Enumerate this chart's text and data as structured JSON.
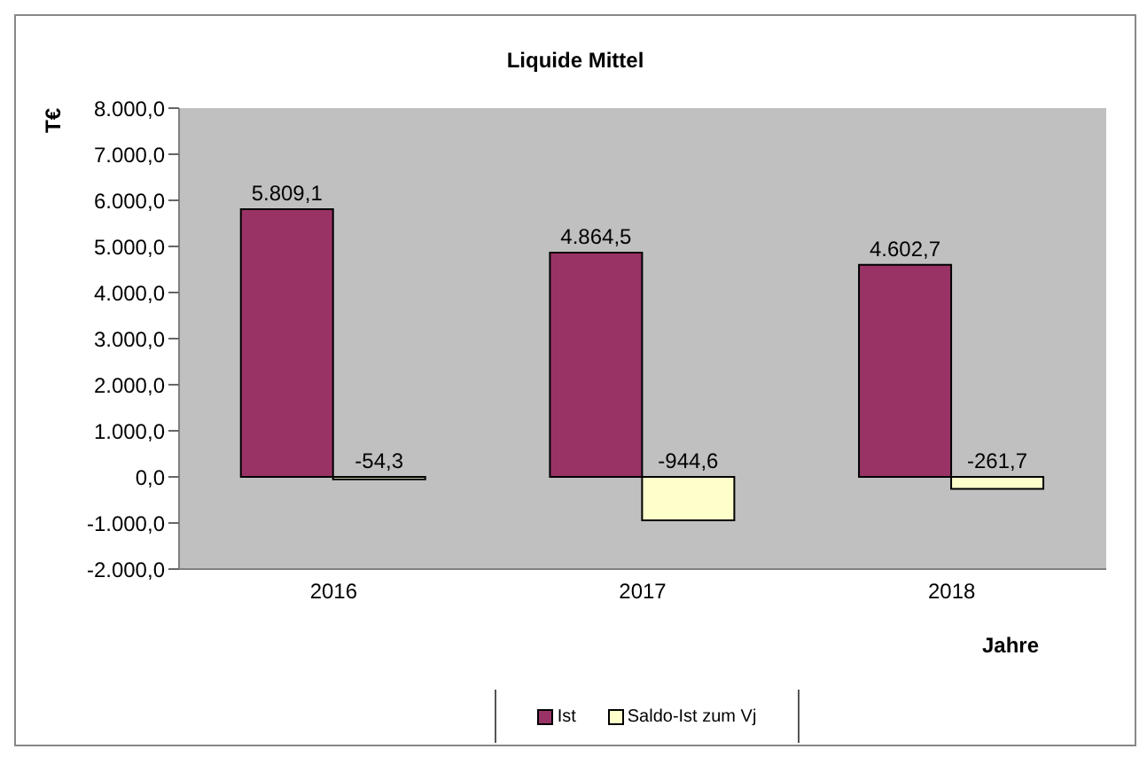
{
  "chart_data": {
    "type": "bar",
    "title": "Liquide  Mittel",
    "xlabel": "Jahre",
    "ylabel": "T€",
    "categories": [
      "2016",
      "2017",
      "2018"
    ],
    "series": [
      {
        "name": "Ist",
        "color": "#993366",
        "values": [
          5809.1,
          4864.5,
          4602.7
        ],
        "value_labels": [
          "5.809,1",
          "4.864,5",
          "4.602,7"
        ]
      },
      {
        "name": "Saldo-Ist zum Vj",
        "color": "#ffffcc",
        "values": [
          -54.3,
          -944.6,
          -261.7
        ],
        "value_labels": [
          "-54,3",
          "-944,6",
          "-261,7"
        ]
      }
    ],
    "ylim": [
      -2000,
      8000
    ],
    "yticks": [
      {
        "value": -2000,
        "label": "-2.000,0"
      },
      {
        "value": -1000,
        "label": "-1.000,0"
      },
      {
        "value": 0,
        "label": "0,0"
      },
      {
        "value": 1000,
        "label": "1.000,0"
      },
      {
        "value": 2000,
        "label": "2.000,0"
      },
      {
        "value": 3000,
        "label": "3.000,0"
      },
      {
        "value": 4000,
        "label": "4.000,0"
      },
      {
        "value": 5000,
        "label": "5.000,0"
      },
      {
        "value": 6000,
        "label": "6.000,0"
      },
      {
        "value": 7000,
        "label": "7.000,0"
      },
      {
        "value": 8000,
        "label": "8.000,0"
      }
    ],
    "grid": false,
    "legend": "bottom"
  }
}
